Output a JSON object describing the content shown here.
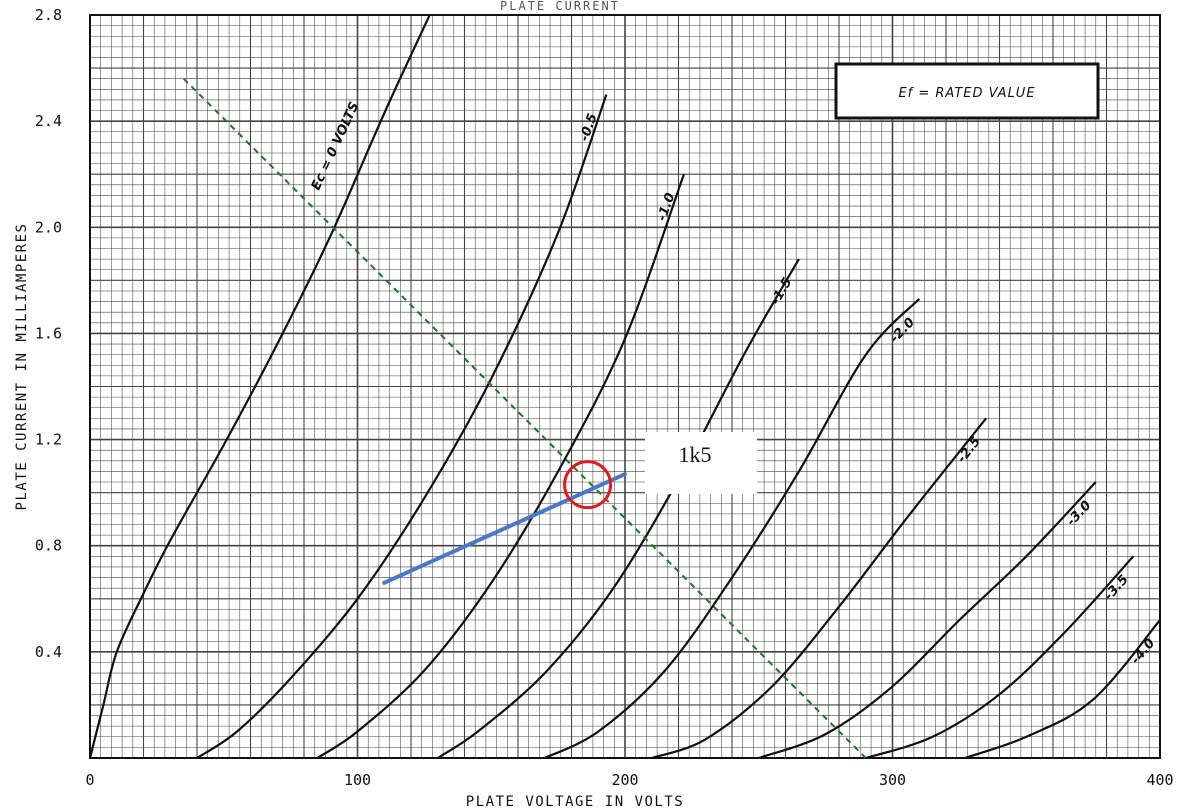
{
  "chart_data": {
    "type": "line",
    "title": "PLATE CURRENT",
    "xlabel": "PLATE VOLTAGE IN VOLTS",
    "ylabel": "PLATE CURRENT IN MILLIAMPERES",
    "xlim": [
      0,
      400
    ],
    "ylim": [
      0,
      2.8
    ],
    "x_ticks": [
      "0",
      "100",
      "200",
      "300",
      "400"
    ],
    "y_ticks": [
      "0.4",
      "0.8",
      "1.2",
      "1.6",
      "2.0",
      "2.4",
      "2.8"
    ],
    "grid": true,
    "legend_box": "Ef = RATED VALUE",
    "series": [
      {
        "name": "Ec = 0 VOLTS",
        "points": [
          [
            0,
            0
          ],
          [
            5,
            0.2
          ],
          [
            10,
            0.4
          ],
          [
            20,
            0.62
          ],
          [
            30,
            0.82
          ],
          [
            50,
            1.18
          ],
          [
            70,
            1.56
          ],
          [
            90,
            1.97
          ],
          [
            110,
            2.43
          ],
          [
            127,
            2.8
          ]
        ]
      },
      {
        "name": "-0.5",
        "points": [
          [
            40,
            0
          ],
          [
            55,
            0.1
          ],
          [
            75,
            0.3
          ],
          [
            100,
            0.6
          ],
          [
            125,
            0.98
          ],
          [
            150,
            1.43
          ],
          [
            175,
            1.98
          ],
          [
            193,
            2.5
          ]
        ]
      },
      {
        "name": "-1.0",
        "points": [
          [
            85,
            0
          ],
          [
            100,
            0.1
          ],
          [
            125,
            0.33
          ],
          [
            150,
            0.66
          ],
          [
            175,
            1.08
          ],
          [
            200,
            1.58
          ],
          [
            222,
            2.2
          ]
        ]
      },
      {
        "name": "-1.5",
        "points": [
          [
            130,
            0
          ],
          [
            145,
            0.1
          ],
          [
            170,
            0.32
          ],
          [
            195,
            0.63
          ],
          [
            220,
            1.05
          ],
          [
            245,
            1.53
          ],
          [
            265,
            1.88
          ]
        ]
      },
      {
        "name": "-2.0",
        "points": [
          [
            170,
            0
          ],
          [
            190,
            0.1
          ],
          [
            215,
            0.33
          ],
          [
            240,
            0.68
          ],
          [
            265,
            1.08
          ],
          [
            290,
            1.52
          ],
          [
            310,
            1.73
          ]
        ]
      },
      {
        "name": "-2.5",
        "points": [
          [
            210,
            0
          ],
          [
            230,
            0.07
          ],
          [
            255,
            0.27
          ],
          [
            280,
            0.57
          ],
          [
            305,
            0.9
          ],
          [
            335,
            1.28
          ]
        ]
      },
      {
        "name": "-3.0",
        "points": [
          [
            250,
            0
          ],
          [
            275,
            0.09
          ],
          [
            300,
            0.27
          ],
          [
            325,
            0.52
          ],
          [
            350,
            0.76
          ],
          [
            376,
            1.04
          ]
        ]
      },
      {
        "name": "-3.5",
        "points": [
          [
            290,
            0
          ],
          [
            315,
            0.08
          ],
          [
            340,
            0.24
          ],
          [
            365,
            0.48
          ],
          [
            390,
            0.76
          ]
        ]
      },
      {
        "name": "-4.0",
        "points": [
          [
            327,
            0
          ],
          [
            350,
            0.08
          ],
          [
            375,
            0.22
          ],
          [
            400,
            0.52
          ]
        ]
      }
    ],
    "load_line": {
      "points": [
        [
          35,
          2.56
        ],
        [
          290,
          0
        ]
      ]
    },
    "bias_line": {
      "points": [
        [
          110,
          0.66
        ],
        [
          200,
          1.07
        ]
      ]
    },
    "operating_point": {
      "x": 186,
      "y": 1.03
    },
    "annotation": "1k5"
  },
  "colors": {
    "grid": "#444444",
    "curve": "#111111",
    "load_line": "#1a7a1a",
    "bias_line": "#4a78c8",
    "operating_point": "#e01b1b"
  }
}
